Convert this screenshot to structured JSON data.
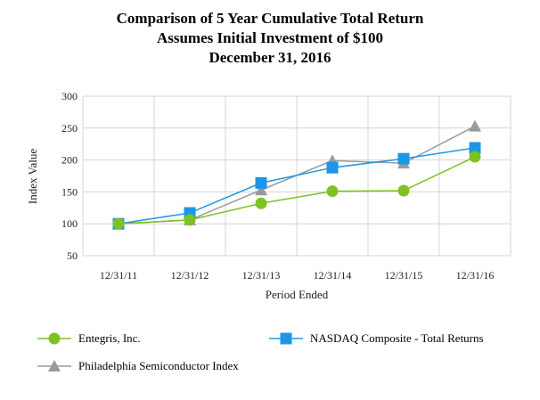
{
  "title": {
    "line1": "Comparison of 5 Year Cumulative Total Return",
    "line2": "Assumes Initial Investment of $100",
    "line3": "December 31, 2016"
  },
  "chart_data": {
    "type": "line",
    "title": "Comparison of 5 Year Cumulative Total Return",
    "subtitle": "Assumes Initial Investment of $100 December 31, 2016",
    "xlabel": "Period Ended",
    "ylabel": "Index Value",
    "categories": [
      "12/31/11",
      "12/31/12",
      "12/31/13",
      "12/31/14",
      "12/31/15",
      "12/31/16"
    ],
    "ylim": [
      50,
      300
    ],
    "yticks": [
      50,
      100,
      150,
      200,
      250,
      300
    ],
    "grid": true,
    "legend_position": "bottom",
    "series": [
      {
        "name": "Entegris, Inc.",
        "marker": "circle",
        "color": "#7dc221",
        "values": [
          100,
          106,
          132,
          151,
          152,
          205
        ]
      },
      {
        "name": "NASDAQ Composite - Total Returns",
        "marker": "square",
        "color": "#1e96e6",
        "values": [
          100,
          117,
          164,
          188,
          202,
          219
        ]
      },
      {
        "name": "Philadelphia Semiconductor Index",
        "marker": "triangle",
        "color": "#9a9a9a",
        "values": [
          100,
          106,
          153,
          199,
          195,
          253
        ]
      }
    ]
  }
}
